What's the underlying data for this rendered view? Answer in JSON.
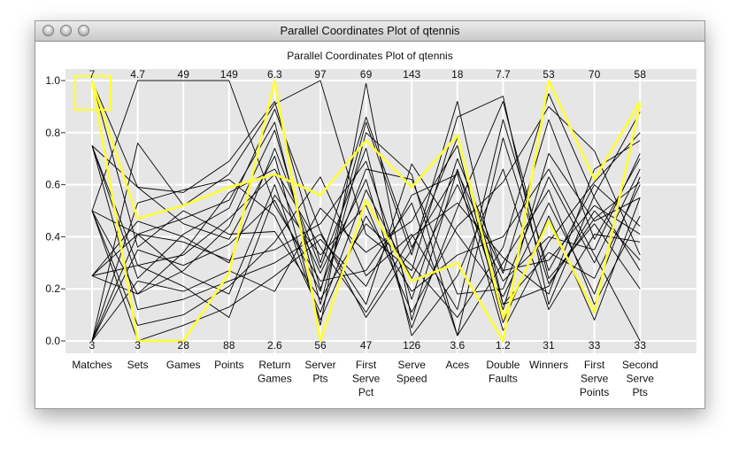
{
  "window": {
    "title": "Parallel Coordinates Plot of qtennis"
  },
  "chart_data": {
    "type": "parallel-coordinates",
    "title": "Parallel Coordinates Plot of qtennis",
    "y_ticks": [
      "0.0",
      "0.2",
      "0.4",
      "0.6",
      "0.8",
      "1.0"
    ],
    "ylim": [
      0,
      1
    ],
    "grid": true,
    "background_color": "#e6e6e6",
    "highlight_color": "#ffff33",
    "line_color": "#000000",
    "axes": [
      {
        "label": "Matches",
        "max": "7",
        "min": "3"
      },
      {
        "label": "Sets",
        "max": "4.7",
        "min": "3"
      },
      {
        "label": "Games",
        "max": "49",
        "min": "28"
      },
      {
        "label": "Points",
        "max": "149",
        "min": "88"
      },
      {
        "label": "Return Games",
        "max": "6.3",
        "min": "2.6"
      },
      {
        "label": "Server Pts",
        "max": "97",
        "min": "56"
      },
      {
        "label": "First Serve Pct",
        "max": "69",
        "min": "47"
      },
      {
        "label": "Serve Speed",
        "max": "143",
        "min": "126"
      },
      {
        "label": "Aces",
        "max": "18",
        "min": "3.6"
      },
      {
        "label": "Double Faults",
        "max": "7.7",
        "min": "1.2"
      },
      {
        "label": "Winners",
        "max": "53",
        "min": "31"
      },
      {
        "label": "First Serve Points",
        "max": "70",
        "min": "33"
      },
      {
        "label": "Second Serve Pts",
        "max": "58",
        "min": "33"
      }
    ],
    "highlighted_series": [
      {
        "values": [
          1.0,
          0.0,
          0.0,
          0.26,
          1.0,
          0.0,
          0.54,
          0.23,
          0.3,
          0.0,
          1.0,
          0.62,
          0.92
        ]
      },
      {
        "values": [
          1.0,
          0.47,
          0.52,
          0.59,
          0.64,
          0.56,
          0.77,
          0.59,
          0.79,
          0.09,
          0.46,
          0.11,
          0.91
        ]
      }
    ],
    "series": [
      {
        "values": [
          0.75,
          0.59,
          0.57,
          0.69,
          0.92,
          0.3,
          0.86,
          0.36,
          0.65,
          0.26,
          0.85,
          0.39,
          0.7
        ]
      },
      {
        "values": [
          0.5,
          0.41,
          0.47,
          0.54,
          0.84,
          0.14,
          0.8,
          0.64,
          0.02,
          0.78,
          0.22,
          0.47,
          0.61
        ]
      },
      {
        "values": [
          0.25,
          0.29,
          0.33,
          0.47,
          0.64,
          0.26,
          0.62,
          0.05,
          0.51,
          0.92,
          0.24,
          0.45,
          0.2
        ]
      },
      {
        "values": [
          0.0,
          0.76,
          0.52,
          0.64,
          0.91,
          1.0,
          0.41,
          0.27,
          0.86,
          0.94,
          0.14,
          0.56,
          0.88
        ]
      },
      {
        "values": [
          1.0,
          0.59,
          0.45,
          0.39,
          0.71,
          0.06,
          0.99,
          0.08,
          0.66,
          0.12,
          0.72,
          0.46,
          0.55
        ]
      },
      {
        "values": [
          0.5,
          0.18,
          0.27,
          0.44,
          0.81,
          0.2,
          0.66,
          0.62,
          0.18,
          0.2,
          0.63,
          0.3,
          0.66
        ]
      },
      {
        "values": [
          0.0,
          0.41,
          0.38,
          0.31,
          0.35,
          0.45,
          0.69,
          0.16,
          0.7,
          0.27,
          0.31,
          0.52,
          0.41
        ]
      },
      {
        "values": [
          0.75,
          0.29,
          0.21,
          0.09,
          0.56,
          0.33,
          0.52,
          0.11,
          0.44,
          0.61,
          0.9,
          0.73,
          0.33
        ]
      },
      {
        "values": [
          0.5,
          1.0,
          1.0,
          1.0,
          0.52,
          0.23,
          0.27,
          0.53,
          0.02,
          0.3,
          0.58,
          0.14,
          0.48
        ]
      },
      {
        "values": [
          0.25,
          0.18,
          0.34,
          0.57,
          0.66,
          0.36,
          0.11,
          0.4,
          0.53,
          0.32,
          0.18,
          0.66,
          0.77
        ]
      },
      {
        "values": [
          0.0,
          0.35,
          0.29,
          0.37,
          0.54,
          0.19,
          0.84,
          0.33,
          0.92,
          0.14,
          0.34,
          0.24,
          0.6
        ]
      },
      {
        "values": [
          0.5,
          0.06,
          0.1,
          0.21,
          0.38,
          0.63,
          0.25,
          0.41,
          0.12,
          0.85,
          0.27,
          0.6,
          0.44
        ]
      },
      {
        "values": [
          0.0,
          0.53,
          0.58,
          0.62,
          0.48,
          0.11,
          0.58,
          0.24,
          0.6,
          0.23,
          0.4,
          0.35,
          0.72
        ]
      },
      {
        "values": [
          0.75,
          0.12,
          0.16,
          0.23,
          0.3,
          0.41,
          0.14,
          0.68,
          0.41,
          0.17,
          0.53,
          0.18,
          0.63
        ]
      },
      {
        "values": [
          0.25,
          0.46,
          0.4,
          0.3,
          0.74,
          0.28,
          0.74,
          0.02,
          0.25,
          0.66,
          0.12,
          0.41,
          0.38
        ]
      },
      {
        "values": [
          0.0,
          0.23,
          0.19,
          0.27,
          0.19,
          0.51,
          0.34,
          0.46,
          0.75,
          0.07,
          0.48,
          0.08,
          0.55
        ]
      },
      {
        "values": [
          1.0,
          0.36,
          0.5,
          0.41,
          0.42,
          0.16,
          0.45,
          0.29,
          0.09,
          0.36,
          0.95,
          0.55,
          0.27
        ]
      },
      {
        "values": [
          0.5,
          0.0,
          0.06,
          0.13,
          0.25,
          0.39,
          0.21,
          0.56,
          0.64,
          0.04,
          0.38,
          0.61,
          0.8
        ]
      },
      {
        "values": [
          0.25,
          0.41,
          0.26,
          0.18,
          0.6,
          0.08,
          0.48,
          0.19,
          0.33,
          0.4,
          0.66,
          0.33,
          0.0
        ]
      },
      {
        "values": [
          0.75,
          0.24,
          0.41,
          0.51,
          0.89,
          0.42,
          0.09,
          0.35,
          0.78,
          0.14,
          0.21,
          0.5,
          0.31
        ]
      }
    ]
  }
}
